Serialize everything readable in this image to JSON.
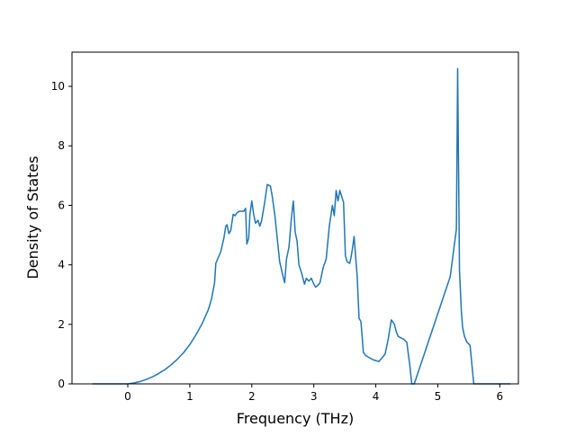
{
  "chart_data": {
    "type": "line",
    "title": "",
    "xlabel": "Frequency (THz)",
    "ylabel": "Density of States",
    "xlim": [
      -0.9,
      6.3
    ],
    "ylim": [
      0,
      11.15
    ],
    "xticks": [
      0,
      1,
      2,
      3,
      4,
      5,
      6
    ],
    "yticks": [
      0,
      2,
      4,
      6,
      8,
      10
    ],
    "grid": false,
    "legend": "none",
    "series": [
      {
        "color": "#1f77b4",
        "x": [
          -0.57,
          0.0,
          0.1,
          0.2,
          0.3,
          0.4,
          0.5,
          0.6,
          0.7,
          0.8,
          0.9,
          1.0,
          1.1,
          1.2,
          1.3,
          1.35,
          1.4,
          1.42,
          1.45,
          1.5,
          1.55,
          1.58,
          1.6,
          1.63,
          1.66,
          1.7,
          1.73,
          1.76,
          1.8,
          1.83,
          1.87,
          1.9,
          1.92,
          1.95,
          1.97,
          2.0,
          2.03,
          2.06,
          2.1,
          2.13,
          2.16,
          2.2,
          2.25,
          2.3,
          2.33,
          2.37,
          2.4,
          2.45,
          2.5,
          2.53,
          2.56,
          2.6,
          2.64,
          2.67,
          2.7,
          2.73,
          2.76,
          2.8,
          2.85,
          2.88,
          2.92,
          2.96,
          3.0,
          3.03,
          3.06,
          3.1,
          3.15,
          3.2,
          3.25,
          3.3,
          3.33,
          3.36,
          3.39,
          3.42,
          3.45,
          3.48,
          3.51,
          3.54,
          3.58,
          3.6,
          3.62,
          3.65,
          3.7,
          3.73,
          3.76,
          3.8,
          3.84,
          3.88,
          3.92,
          3.97,
          4.05,
          4.15,
          4.2,
          4.25,
          4.3,
          4.33,
          4.36,
          4.4,
          4.45,
          4.5,
          4.55,
          4.58,
          4.6,
          4.62,
          5.2,
          5.3,
          5.32,
          5.35,
          5.38,
          5.4,
          5.43,
          5.47,
          5.52,
          5.58,
          5.6,
          5.62,
          6.17
        ],
        "y": [
          0.0,
          0.0,
          0.03,
          0.08,
          0.15,
          0.24,
          0.35,
          0.48,
          0.64,
          0.83,
          1.05,
          1.32,
          1.65,
          2.03,
          2.5,
          2.85,
          3.4,
          4.05,
          4.2,
          4.45,
          4.9,
          5.3,
          5.35,
          5.05,
          5.15,
          5.7,
          5.65,
          5.75,
          5.8,
          5.8,
          5.8,
          5.9,
          4.7,
          4.9,
          5.7,
          6.15,
          5.7,
          5.4,
          5.5,
          5.3,
          5.5,
          6.0,
          6.7,
          6.65,
          6.3,
          5.7,
          5.1,
          4.1,
          3.65,
          3.4,
          4.2,
          4.6,
          5.6,
          6.15,
          5.1,
          4.8,
          4.0,
          3.75,
          3.35,
          3.55,
          3.45,
          3.55,
          3.35,
          3.25,
          3.3,
          3.4,
          3.9,
          4.2,
          5.3,
          6.0,
          5.65,
          6.5,
          6.15,
          6.5,
          6.3,
          6.1,
          4.3,
          4.1,
          4.05,
          4.25,
          4.5,
          4.95,
          3.6,
          2.2,
          2.1,
          1.05,
          0.95,
          0.9,
          0.85,
          0.8,
          0.75,
          1.0,
          1.5,
          2.15,
          2.0,
          1.75,
          1.6,
          1.55,
          1.5,
          1.4,
          0.6,
          0.0,
          0.0,
          0.0,
          3.6,
          5.2,
          10.6,
          3.8,
          2.45,
          1.9,
          1.6,
          1.4,
          1.3,
          0.0,
          0.0,
          0.0,
          0.0
        ]
      }
    ]
  }
}
